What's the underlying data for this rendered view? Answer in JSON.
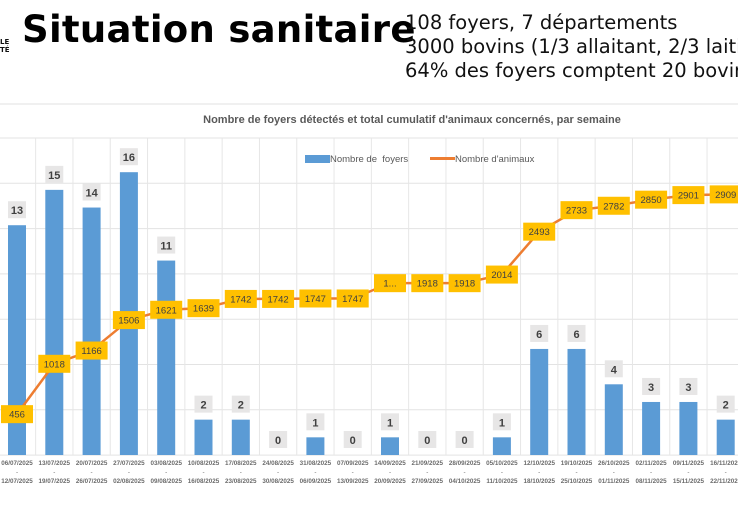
{
  "header": {
    "logo_text": [
      "LE",
      "TÉ"
    ],
    "title": "Situation sanitaire",
    "facts": [
      "108 foyers, 7 départements",
      "3000 bovins (1/3 allaitant, 2/3 laitie",
      "64% des foyers comptent 20 bovin"
    ]
  },
  "chart_data": {
    "type": "bar+line",
    "title": "Nombre de foyers détectés et total cumulatif d'animaux concernés, par semaine",
    "legend_position": "top",
    "grid": true,
    "categories": [
      [
        "06/07/2025",
        "12/07/2025"
      ],
      [
        "13/07/2025",
        "19/07/2025"
      ],
      [
        "20/07/2025",
        "26/07/2025"
      ],
      [
        "27/07/2025",
        "02/08/2025"
      ],
      [
        "03/08/2025",
        "09/08/2025"
      ],
      [
        "10/08/2025",
        "16/08/2025"
      ],
      [
        "17/08/2025",
        "23/08/2025"
      ],
      [
        "24/08/2025",
        "30/08/2025"
      ],
      [
        "31/08/2025",
        "06/09/2025"
      ],
      [
        "07/09/2025",
        "13/09/2025"
      ],
      [
        "14/09/2025",
        "20/09/2025"
      ],
      [
        "21/09/2025",
        "27/09/2025"
      ],
      [
        "28/09/2025",
        "04/10/2025"
      ],
      [
        "05/10/2025",
        "11/10/2025"
      ],
      [
        "12/10/2025",
        "18/10/2025"
      ],
      [
        "19/10/2025",
        "25/10/2025"
      ],
      [
        "26/10/2025",
        "01/11/2025"
      ],
      [
        "02/11/2025",
        "08/11/2025"
      ],
      [
        "09/11/2025",
        "15/11/2025"
      ],
      [
        "16/11/2025",
        "22/11/2025"
      ]
    ],
    "series": [
      {
        "name": "Nombre de  foyers",
        "type": "bar",
        "color": "#5b9bd5",
        "values": [
          13,
          15,
          14,
          16,
          11,
          2,
          2,
          0,
          1,
          0,
          1,
          0,
          0,
          1,
          6,
          6,
          4,
          3,
          3,
          2
        ]
      },
      {
        "name": "Nombre d'animaux",
        "type": "line",
        "color": "#ed7d31",
        "label_color": "#ffc000",
        "values": [
          456,
          1018,
          1166,
          1506,
          1621,
          1639,
          1742,
          1742,
          1747,
          1747,
          1918,
          1918,
          1918,
          2014,
          2493,
          2733,
          2782,
          2850,
          2901,
          2909
        ],
        "labels": [
          "456",
          "1018",
          "1166",
          "1506",
          "1621",
          "1639",
          "1742",
          "1742",
          "1747",
          "1747",
          "1...",
          "1918",
          "1918",
          "2014",
          "2493",
          "2733",
          "2782",
          "2850",
          "2901",
          "2909"
        ]
      }
    ],
    "ylim_bars": [
      0,
      18.5
    ],
    "ylim_line": [
      0,
      3650
    ]
  }
}
